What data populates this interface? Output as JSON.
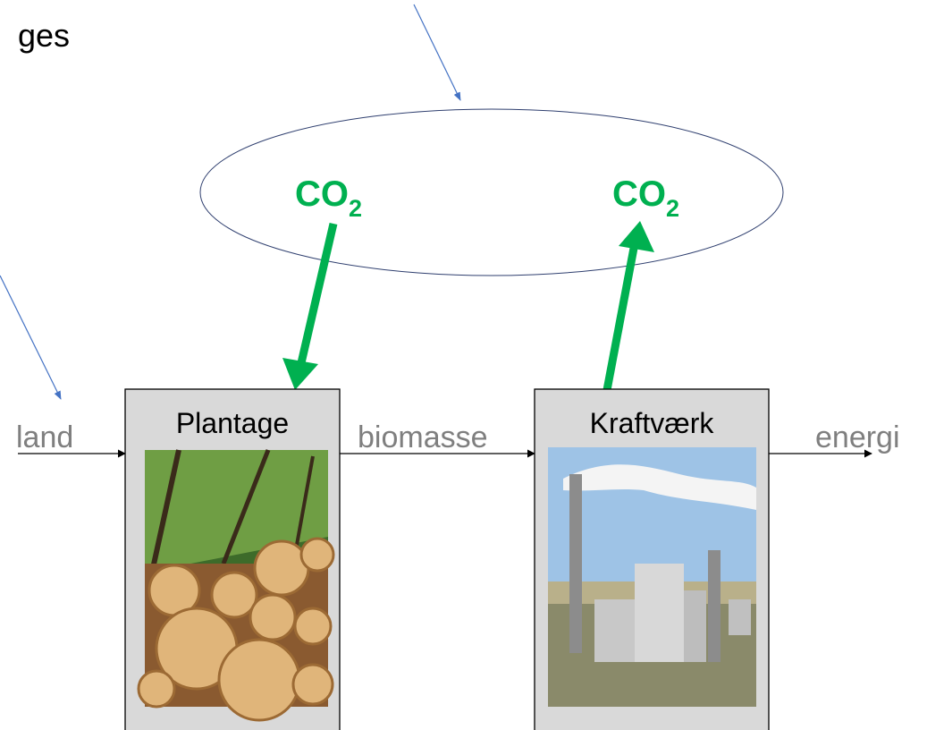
{
  "header": {
    "text": "ges"
  },
  "atmosphere": {
    "labels": [
      {
        "main": "CO",
        "sub": "2"
      },
      {
        "main": "CO",
        "sub": "2"
      }
    ]
  },
  "nodes": [
    {
      "label": "Plantage"
    },
    {
      "label": "Kraftværk"
    }
  ],
  "flows": [
    "land",
    "biomasse",
    "energi"
  ]
}
